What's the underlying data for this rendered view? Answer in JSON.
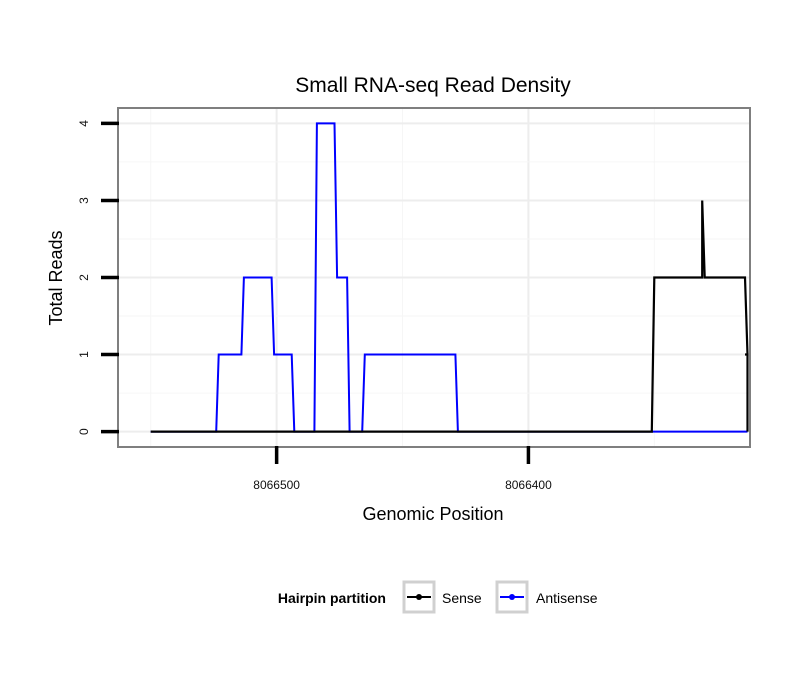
{
  "chart_data": {
    "type": "line",
    "title": "Small RNA-seq Read Density",
    "xlabel": "Genomic Position",
    "ylabel": "Total Reads",
    "x_reversed": true,
    "xlim": [
      8066563,
      8066312
    ],
    "ylim": [
      -0.2,
      4.2
    ],
    "x_ticks": [
      {
        "value": 8066500,
        "label": "8066500"
      },
      {
        "value": 8066400,
        "label": "8066400"
      }
    ],
    "y_ticks": [
      {
        "value": 0,
        "label": "0"
      },
      {
        "value": 1,
        "label": "1"
      },
      {
        "value": 2,
        "label": "2"
      },
      {
        "value": 3,
        "label": "3"
      },
      {
        "value": 4,
        "label": "4"
      }
    ],
    "grid": true,
    "legend": {
      "title": "Hairpin partition",
      "position": "bottom"
    },
    "series": [
      {
        "name": "Sense",
        "color": "#000000",
        "x": [
          8066550,
          8066351,
          8066350,
          8066332,
          8066331,
          8066331,
          8066330,
          8066329,
          8066314,
          8066313,
          8066314,
          8066313,
          8066313
        ],
        "y": [
          0,
          0,
          2,
          2,
          2,
          3,
          2,
          2,
          2,
          1,
          1,
          1,
          0
        ]
      },
      {
        "name": "Antisense",
        "color": "#0000ff",
        "x": [
          8066550,
          8066524,
          8066523,
          8066514,
          8066513,
          8066502,
          8066501,
          8066494,
          8066493,
          8066485,
          8066484,
          8066477,
          8066476,
          8066472,
          8066471,
          8066466,
          8066465,
          8066429,
          8066428,
          8066409,
          8066408,
          8066313
        ],
        "y": [
          0,
          0,
          1,
          1,
          2,
          2,
          1,
          1,
          0,
          0,
          4,
          4,
          2,
          2,
          0,
          0,
          1,
          1,
          0,
          0,
          0,
          0
        ]
      }
    ]
  }
}
